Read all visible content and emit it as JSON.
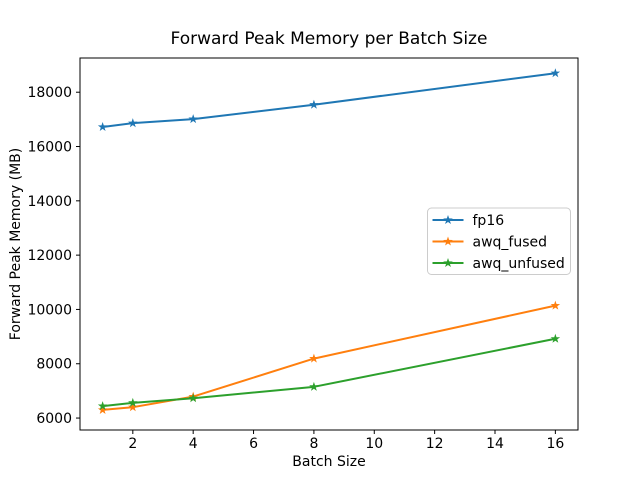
{
  "figure": {
    "background": "#ffffff",
    "spine_color": "#000000",
    "text_color": "#000000",
    "legend_border_color": "#cccccc"
  },
  "chart_data": {
    "type": "line",
    "title": "Forward Peak Memory per Batch Size",
    "xlabel": "Batch Size",
    "ylabel": "Forward Peak Memory (MB)",
    "x": [
      1,
      2,
      4,
      8,
      16
    ],
    "series": [
      {
        "name": "fp16",
        "color": "#1f77b4",
        "values": [
          16720,
          16860,
          17010,
          17540,
          18700
        ]
      },
      {
        "name": "awq_fused",
        "color": "#ff7f0e",
        "values": [
          6300,
          6400,
          6790,
          8190,
          10140
        ]
      },
      {
        "name": "awq_unfused",
        "color": "#2ca02c",
        "values": [
          6440,
          6560,
          6730,
          7150,
          8920
        ]
      }
    ],
    "xlim": [
      0.25,
      16.75
    ],
    "ylim": [
      5560,
      19260
    ],
    "xticks": [
      2,
      4,
      6,
      8,
      10,
      12,
      14,
      16
    ],
    "yticks": [
      6000,
      8000,
      10000,
      12000,
      14000,
      16000,
      18000
    ],
    "marker": "star",
    "line_width": 2,
    "grid": false,
    "legend_position": "center-right"
  }
}
